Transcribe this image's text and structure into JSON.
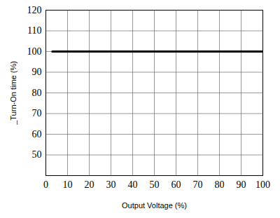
{
  "chart_data": {
    "type": "line",
    "x_label": "Output Voltage (%)",
    "y_label": "_Turn-On time (%)",
    "x": [
      3,
      100
    ],
    "values": [
      100,
      100
    ],
    "color": "#000000",
    "xlim": [
      0,
      100
    ],
    "xticks": [
      0,
      10,
      20,
      30,
      40,
      50,
      60,
      70,
      80,
      90,
      100
    ],
    "ylim": [
      40,
      120
    ],
    "yticks": [
      50,
      60,
      70,
      80,
      90,
      100,
      110,
      120
    ],
    "grid": true
  }
}
